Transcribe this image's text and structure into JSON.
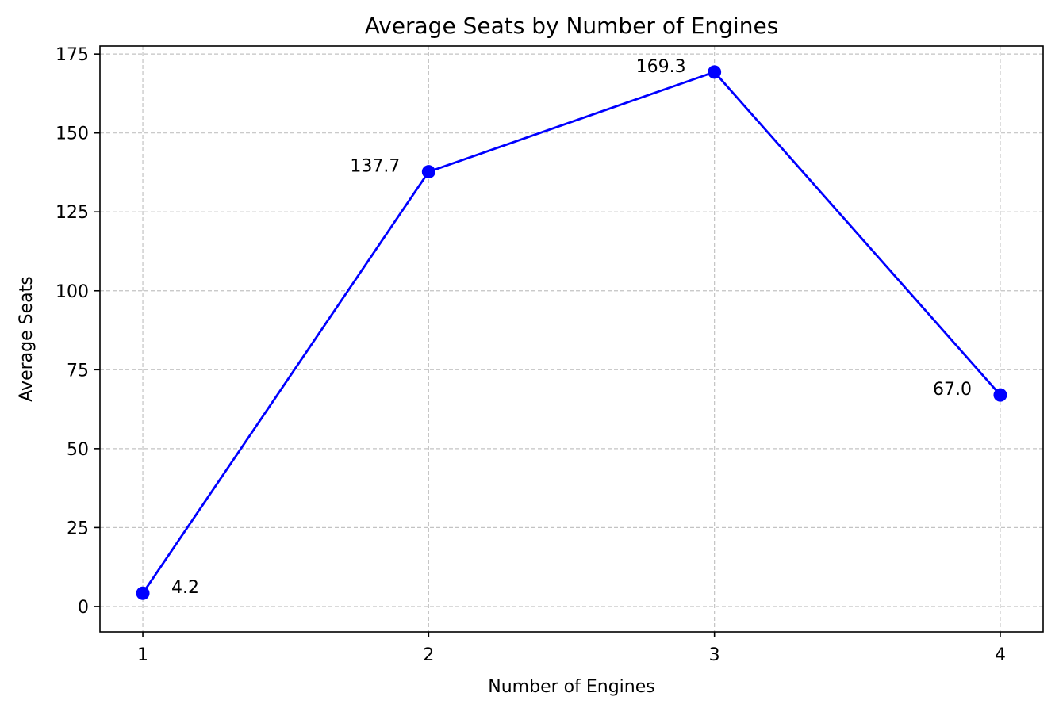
{
  "chart_data": {
    "type": "line",
    "title": "Average Seats by Number of Engines",
    "xlabel": "Number of Engines",
    "ylabel": "Average Seats",
    "categories": [
      "1",
      "2",
      "3",
      "4"
    ],
    "x": [
      1,
      2,
      3,
      4
    ],
    "series": [
      {
        "values": [
          4.2,
          137.7,
          169.3,
          67.0
        ],
        "color": "#0000ff",
        "marker": "circle"
      }
    ],
    "data_labels": [
      "4.2",
      "137.7",
      "169.3",
      "67.0"
    ],
    "xlim": [
      0.85,
      4.15
    ],
    "ylim": [
      -8.05,
      177.55
    ],
    "xticks": [
      1,
      2,
      3,
      4
    ],
    "xtick_labels": [
      "1",
      "2",
      "3",
      "4"
    ],
    "yticks": [
      0,
      25,
      50,
      75,
      100,
      125,
      150,
      175
    ],
    "ytick_labels": [
      "0",
      "25",
      "50",
      "75",
      "100",
      "125",
      "150",
      "175"
    ],
    "grid": true,
    "grid_style": "dashed",
    "grid_color": "#b0b0b0",
    "axis_color": "#000000",
    "legend": "none"
  }
}
